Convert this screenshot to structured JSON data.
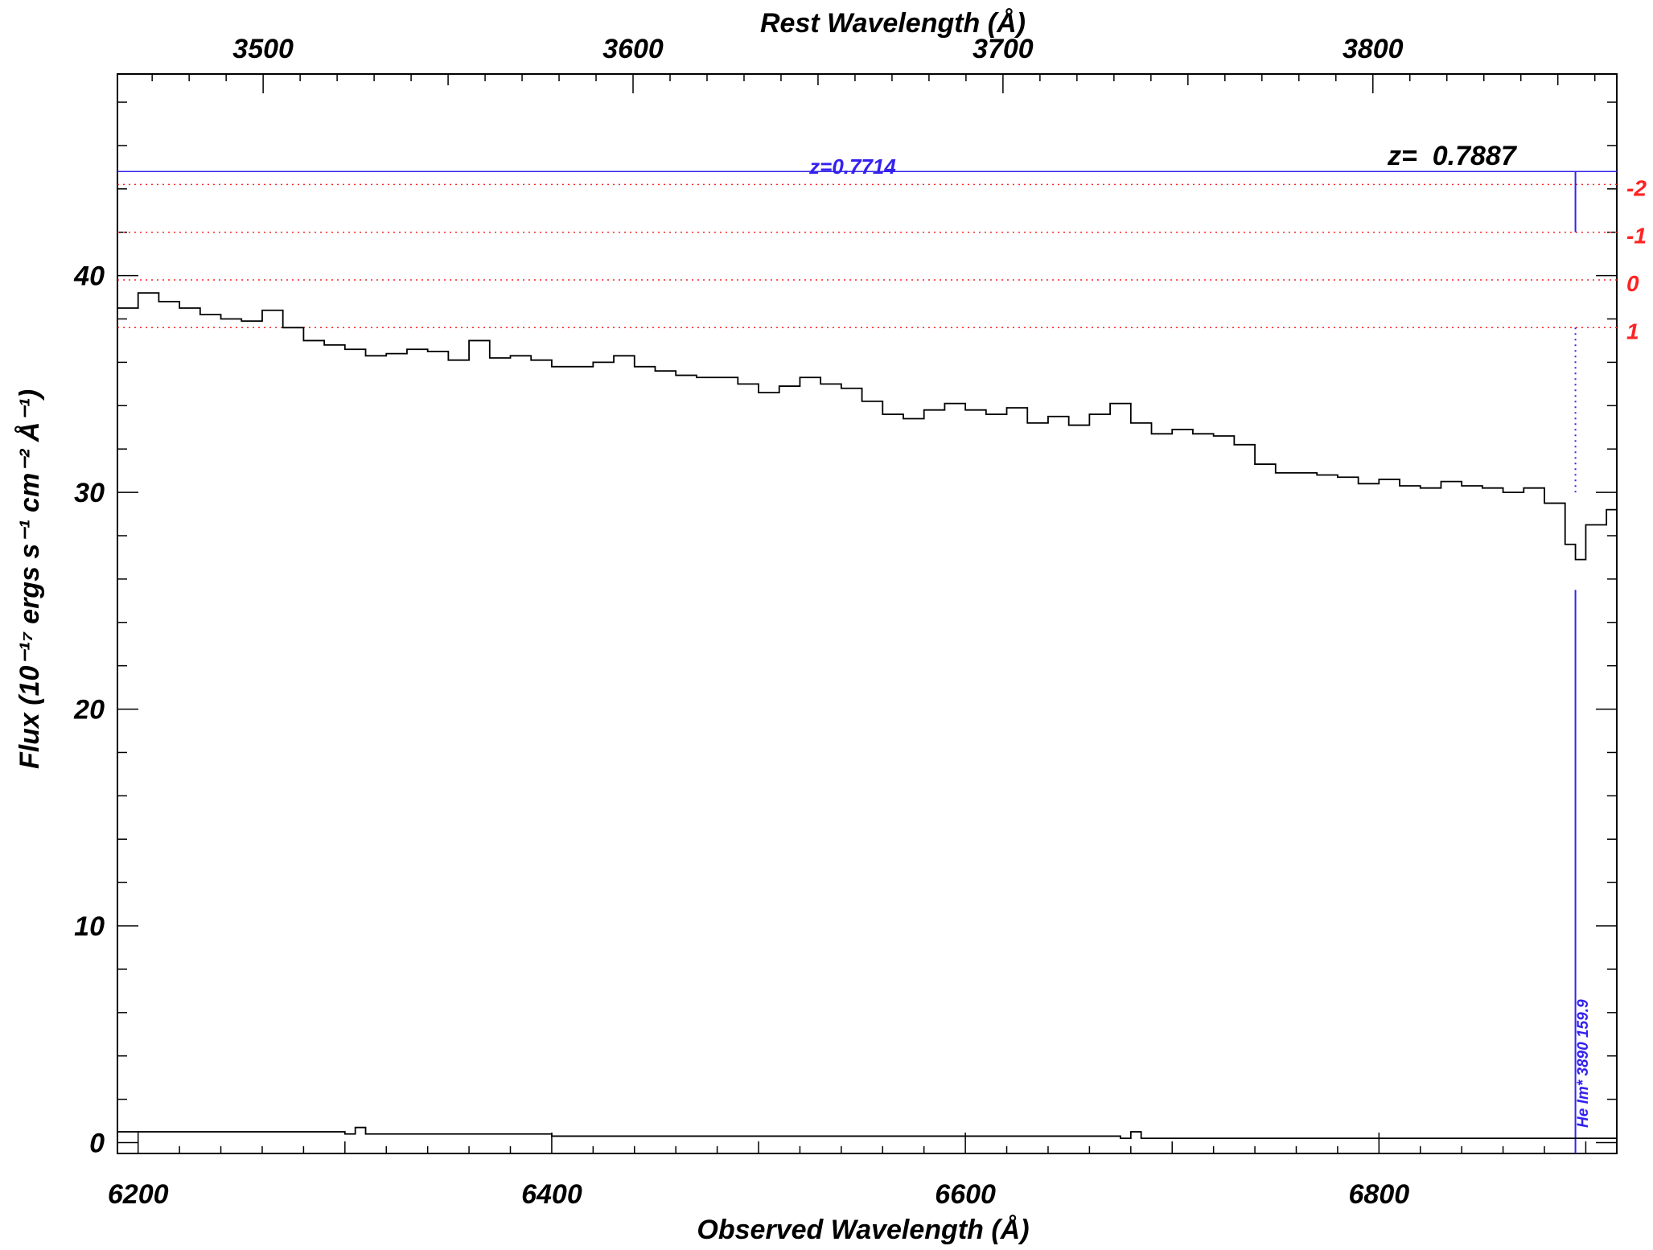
{
  "chart_data": {
    "type": "line",
    "xlabel": "Observed Wavelength (Å)",
    "x2label": "Rest Wavelength (Å)",
    "ylabel": "Flux (10⁻¹⁷ ergs s⁻¹ cm⁻² Å⁻¹)",
    "xlim": [
      6190,
      6915
    ],
    "ylim": [
      -0.5,
      49.3
    ],
    "redshift": 0.7887,
    "xticks": [
      6200,
      6400,
      6600,
      6800
    ],
    "yticks": [
      0,
      10,
      20,
      30,
      40
    ],
    "x2ticks": [
      3500,
      3600,
      3700,
      3800
    ],
    "annotations": {
      "redshift_label": "z=  0.7887",
      "template_label": "z=0.7714",
      "line_label": "He Im* 3890 159.9"
    },
    "marker_lines": {
      "template_y": 44.8,
      "line_x": 6895
    },
    "reference_levels": [
      {
        "label": "-2",
        "y": 44.2
      },
      {
        "label": "-1",
        "y": 42.0
      },
      {
        "label": "0",
        "y": 39.8
      },
      {
        "label": "1",
        "y": 37.6
      }
    ],
    "series": [
      {
        "role": "spectrum",
        "x": [
          6190,
          6200,
          6210,
          6220,
          6230,
          6240,
          6250,
          6260,
          6270,
          6280,
          6290,
          6300,
          6310,
          6320,
          6330,
          6340,
          6350,
          6360,
          6370,
          6380,
          6390,
          6400,
          6410,
          6420,
          6430,
          6440,
          6450,
          6460,
          6470,
          6480,
          6490,
          6500,
          6510,
          6520,
          6530,
          6540,
          6550,
          6560,
          6570,
          6580,
          6590,
          6600,
          6610,
          6620,
          6630,
          6640,
          6650,
          6660,
          6670,
          6680,
          6690,
          6700,
          6710,
          6720,
          6730,
          6740,
          6750,
          6760,
          6770,
          6780,
          6790,
          6800,
          6810,
          6820,
          6830,
          6840,
          6850,
          6860,
          6870,
          6880,
          6890,
          6895,
          6900,
          6910,
          6915
        ],
        "y": [
          38.5,
          39.2,
          38.8,
          38.5,
          38.2,
          38.0,
          37.9,
          38.4,
          37.6,
          37.0,
          36.8,
          36.6,
          36.3,
          36.4,
          36.6,
          36.5,
          36.1,
          37.0,
          36.2,
          36.3,
          36.1,
          35.8,
          35.8,
          36.0,
          36.3,
          35.8,
          35.6,
          35.4,
          35.3,
          35.3,
          35.0,
          34.6,
          34.9,
          35.3,
          35.0,
          34.8,
          34.2,
          33.6,
          33.4,
          33.8,
          34.1,
          33.8,
          33.6,
          33.9,
          33.2,
          33.5,
          33.1,
          33.6,
          34.1,
          33.2,
          32.7,
          32.9,
          32.7,
          32.6,
          32.2,
          31.3,
          30.9,
          30.9,
          30.8,
          30.7,
          30.4,
          30.6,
          30.3,
          30.2,
          30.5,
          30.3,
          30.2,
          30.0,
          30.2,
          29.5,
          27.6,
          26.9,
          28.5,
          29.2,
          29.0
        ]
      },
      {
        "role": "error",
        "x": [
          6190,
          6300,
          6305,
          6310,
          6400,
          6500,
          6600,
          6675,
          6680,
          6685,
          6800,
          6880,
          6900,
          6915
        ],
        "y": [
          0.5,
          0.4,
          0.7,
          0.4,
          0.3,
          0.3,
          0.3,
          0.2,
          0.5,
          0.2,
          0.2,
          0.2,
          0.2,
          0.2
        ]
      }
    ]
  },
  "colors": {
    "axis": "#000000",
    "spectrum": "#000000",
    "template": "#3322ee",
    "reference": "#ff2222"
  }
}
